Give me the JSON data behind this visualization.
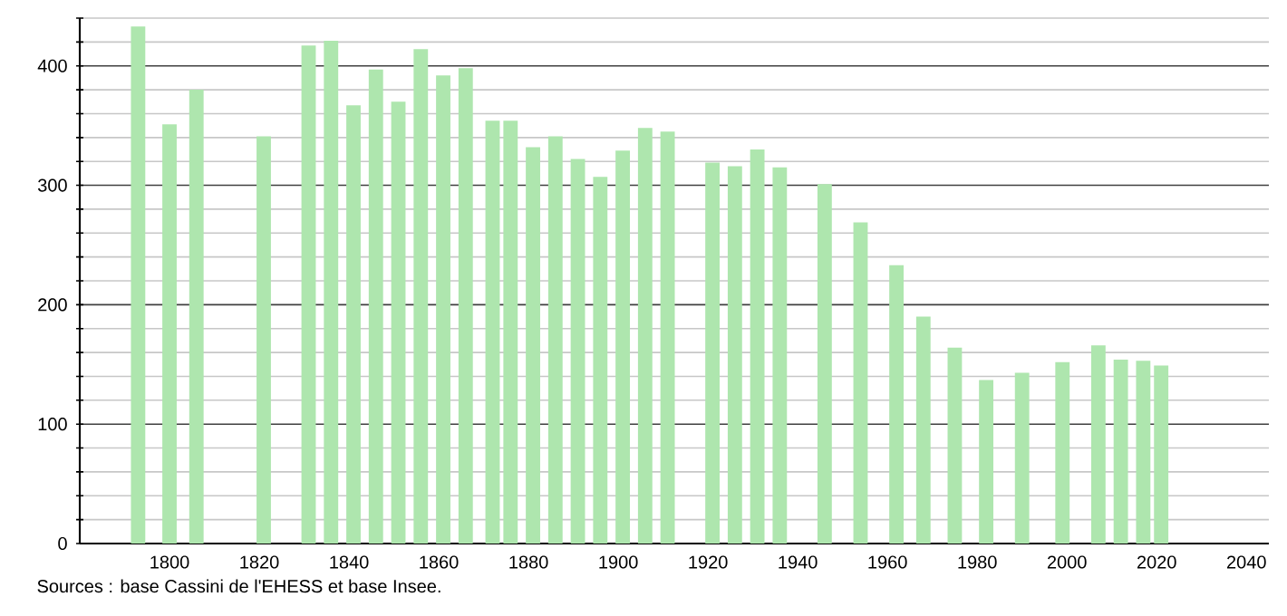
{
  "chart_data": {
    "type": "bar",
    "x": [
      1793,
      1800,
      1806,
      1821,
      1831,
      1836,
      1841,
      1846,
      1851,
      1856,
      1861,
      1866,
      1872,
      1876,
      1881,
      1886,
      1891,
      1896,
      1901,
      1906,
      1911,
      1921,
      1926,
      1931,
      1936,
      1946,
      1954,
      1962,
      1968,
      1975,
      1982,
      1990,
      1999,
      2007,
      2012,
      2017,
      2021
    ],
    "values": [
      433,
      351,
      380,
      341,
      417,
      421,
      367,
      397,
      370,
      414,
      392,
      398,
      354,
      354,
      332,
      341,
      322,
      307,
      329,
      348,
      345,
      319,
      316,
      330,
      315,
      301,
      269,
      233,
      190,
      164,
      137,
      143,
      152,
      166,
      154,
      153,
      149
    ],
    "color": "#aee6ae",
    "xlim": [
      1780,
      2045
    ],
    "ylim": [
      0,
      440
    ],
    "xticks": [
      1800,
      1820,
      1840,
      1860,
      1880,
      1900,
      1920,
      1940,
      1960,
      1980,
      2000,
      2020,
      2040
    ],
    "yticks": [
      0,
      {
        "value": 20,
        "label": null
      },
      {
        "value": 40,
        "label": null
      },
      {
        "value": 60,
        "label": null
      },
      {
        "value": 80,
        "label": null
      },
      100,
      {
        "value": 120,
        "label": null
      },
      {
        "value": 140,
        "label": null
      },
      {
        "value": 160,
        "label": null
      },
      {
        "value": 180,
        "label": null
      },
      200,
      {
        "value": 220,
        "label": null
      },
      {
        "value": 240,
        "label": null
      },
      {
        "value": 260,
        "label": null
      },
      {
        "value": 280,
        "label": null
      },
      300,
      {
        "value": 320,
        "label": null
      },
      {
        "value": 340,
        "label": null
      },
      {
        "value": 360,
        "label": null
      },
      {
        "value": 380,
        "label": null
      },
      400,
      {
        "value": 420,
        "label": null
      },
      {
        "value": 440,
        "label": null
      }
    ],
    "grid": "y",
    "annotations": [
      "Sources : base Cassini de l'EHESS et base Insee."
    ]
  }
}
